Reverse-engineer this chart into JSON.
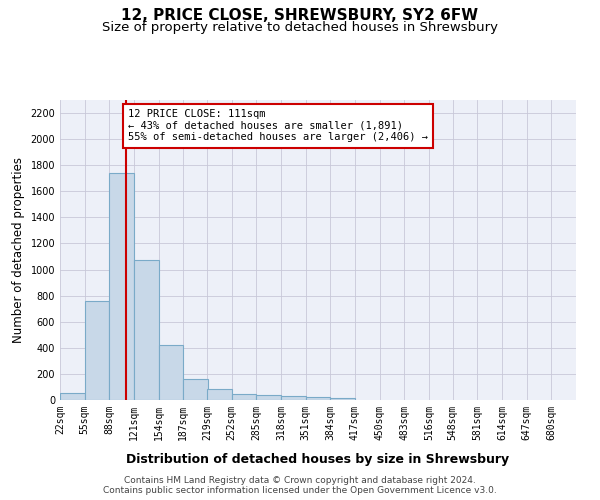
{
  "title": "12, PRICE CLOSE, SHREWSBURY, SY2 6FW",
  "subtitle": "Size of property relative to detached houses in Shrewsbury",
  "xlabel": "Distribution of detached houses by size in Shrewsbury",
  "ylabel": "Number of detached properties",
  "footer_line1": "Contains HM Land Registry data © Crown copyright and database right 2024.",
  "footer_line2": "Contains public sector information licensed under the Open Government Licence v3.0.",
  "bin_labels": [
    "22sqm",
    "55sqm",
    "88sqm",
    "121sqm",
    "154sqm",
    "187sqm",
    "219sqm",
    "252sqm",
    "285sqm",
    "318sqm",
    "351sqm",
    "384sqm",
    "417sqm",
    "450sqm",
    "483sqm",
    "516sqm",
    "548sqm",
    "581sqm",
    "614sqm",
    "647sqm",
    "680sqm"
  ],
  "bin_left_edges": [
    22,
    55,
    88,
    121,
    154,
    187,
    219,
    252,
    285,
    318,
    351,
    384,
    417,
    450,
    483,
    516,
    548,
    581,
    614,
    647,
    680
  ],
  "bar_values": [
    55,
    760,
    1740,
    1075,
    420,
    158,
    85,
    47,
    40,
    30,
    20,
    15,
    0,
    0,
    0,
    0,
    0,
    0,
    0,
    0
  ],
  "bar_color": "#c8d8e8",
  "bar_edge_color": "#7aaac8",
  "property_size": 111,
  "red_line_color": "#cc0000",
  "annotation_text": "12 PRICE CLOSE: 111sqm\n← 43% of detached houses are smaller (1,891)\n55% of semi-detached houses are larger (2,406) →",
  "annotation_box_color": "#ffffff",
  "annotation_box_edge_color": "#cc0000",
  "ylim": [
    0,
    2300
  ],
  "yticks": [
    0,
    200,
    400,
    600,
    800,
    1000,
    1200,
    1400,
    1600,
    1800,
    2000,
    2200
  ],
  "grid_color": "#c8c8d8",
  "background_color": "#edf0f8",
  "title_fontsize": 11,
  "subtitle_fontsize": 9.5,
  "xlabel_fontsize": 9,
  "ylabel_fontsize": 8.5,
  "tick_fontsize": 7,
  "footer_fontsize": 6.5,
  "annotation_fontsize": 7.5
}
